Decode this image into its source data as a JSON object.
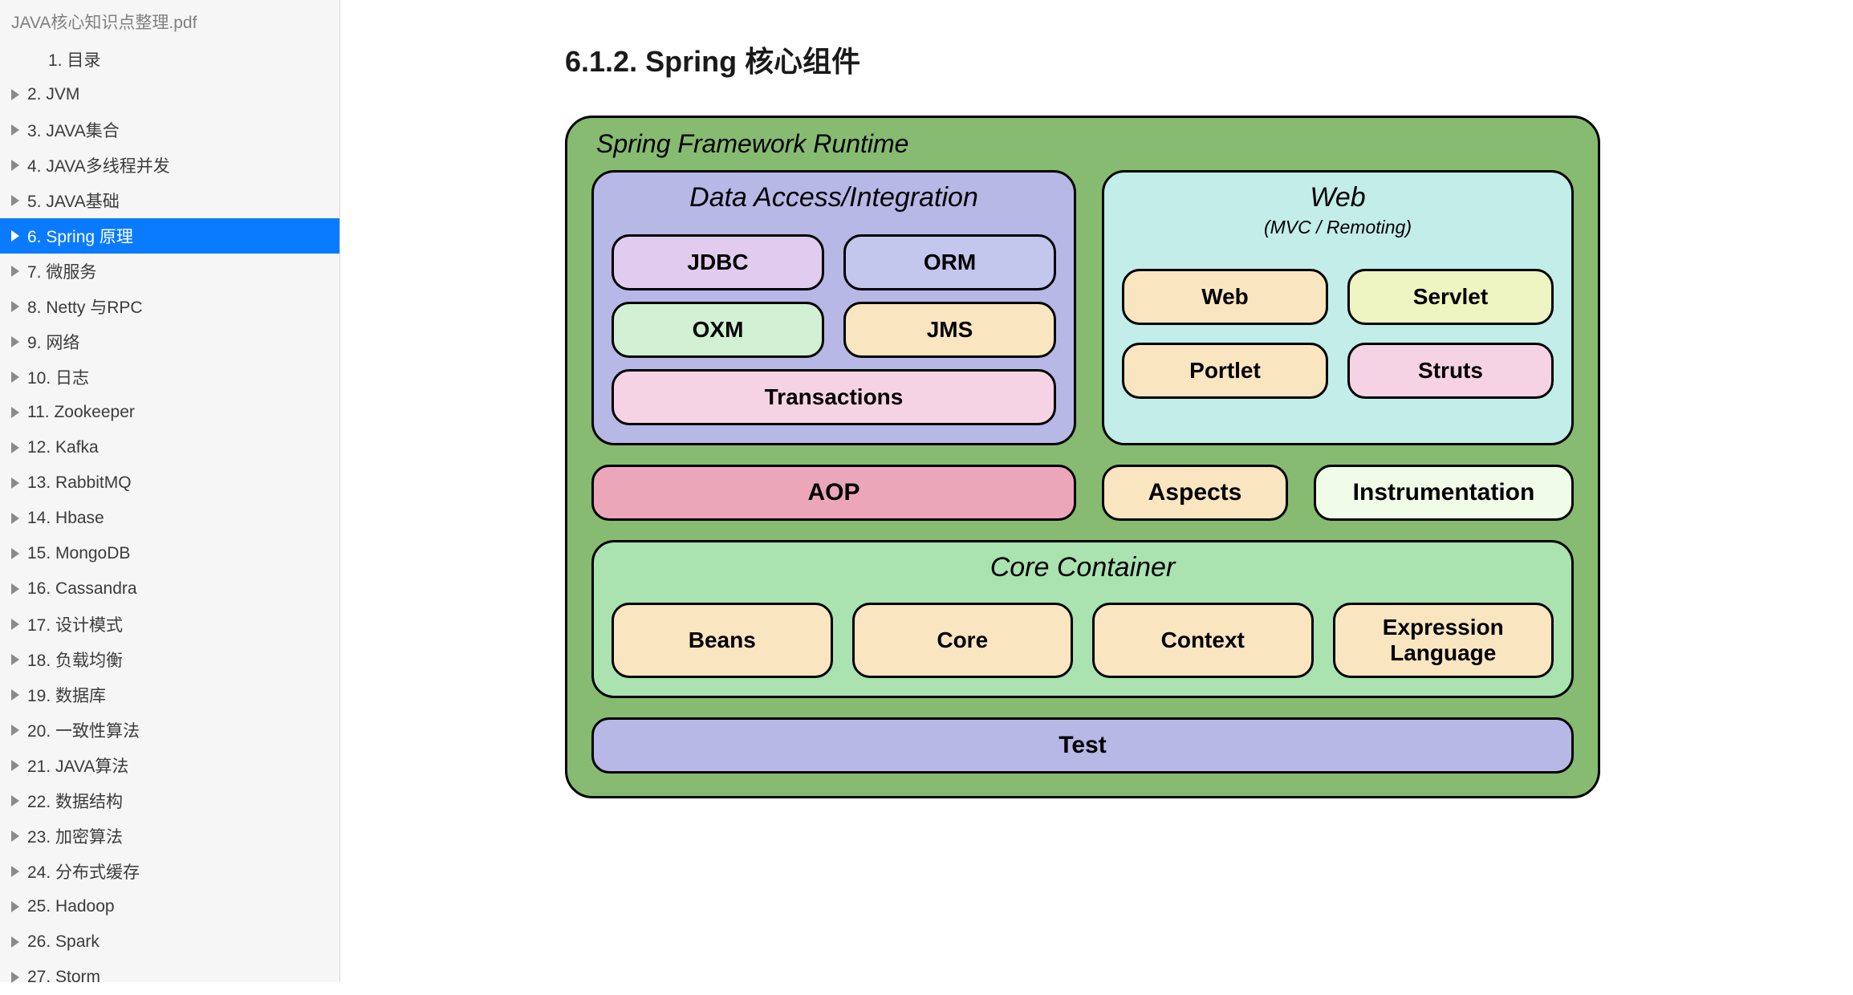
{
  "sidebar": {
    "doc_title": "JAVA核心知识点整理.pdf",
    "items": [
      {
        "label": "1. 目录",
        "arrow": false,
        "indent": true,
        "selected": false
      },
      {
        "label": "2. JVM",
        "arrow": true,
        "indent": false,
        "selected": false
      },
      {
        "label": "3. JAVA集合",
        "arrow": true,
        "indent": false,
        "selected": false
      },
      {
        "label": "4. JAVA多线程并发",
        "arrow": true,
        "indent": false,
        "selected": false
      },
      {
        "label": "5. JAVA基础",
        "arrow": true,
        "indent": false,
        "selected": false
      },
      {
        "label": "6. Spring 原理",
        "arrow": true,
        "indent": false,
        "selected": true
      },
      {
        "label": "7.   微服务",
        "arrow": true,
        "indent": false,
        "selected": false
      },
      {
        "label": "8. Netty 与RPC",
        "arrow": true,
        "indent": false,
        "selected": false
      },
      {
        "label": "9. 网络",
        "arrow": true,
        "indent": false,
        "selected": false
      },
      {
        "label": "10. 日志",
        "arrow": true,
        "indent": false,
        "selected": false
      },
      {
        "label": "11. Zookeeper",
        "arrow": true,
        "indent": false,
        "selected": false
      },
      {
        "label": "12. Kafka",
        "arrow": true,
        "indent": false,
        "selected": false
      },
      {
        "label": "13. RabbitMQ",
        "arrow": true,
        "indent": false,
        "selected": false
      },
      {
        "label": "14. Hbase",
        "arrow": true,
        "indent": false,
        "selected": false
      },
      {
        "label": "15. MongoDB",
        "arrow": true,
        "indent": false,
        "selected": false
      },
      {
        "label": "16. Cassandra",
        "arrow": true,
        "indent": false,
        "selected": false
      },
      {
        "label": "17. 设计模式",
        "arrow": true,
        "indent": false,
        "selected": false
      },
      {
        "label": "18. 负载均衡",
        "arrow": true,
        "indent": false,
        "selected": false
      },
      {
        "label": "19. 数据库",
        "arrow": true,
        "indent": false,
        "selected": false
      },
      {
        "label": "20. 一致性算法",
        "arrow": true,
        "indent": false,
        "selected": false
      },
      {
        "label": "21. JAVA算法",
        "arrow": true,
        "indent": false,
        "selected": false
      },
      {
        "label": "22. 数据结构",
        "arrow": true,
        "indent": false,
        "selected": false
      },
      {
        "label": "23. 加密算法",
        "arrow": true,
        "indent": false,
        "selected": false
      },
      {
        "label": "24. 分布式缓存",
        "arrow": true,
        "indent": false,
        "selected": false
      },
      {
        "label": "25. Hadoop",
        "arrow": true,
        "indent": false,
        "selected": false
      },
      {
        "label": "26. Spark",
        "arrow": true,
        "indent": false,
        "selected": false
      },
      {
        "label": "27. Storm",
        "arrow": true,
        "indent": false,
        "selected": false
      }
    ]
  },
  "content": {
    "section_title": "6.1.2.  Spring 核心组件"
  },
  "diagram": {
    "outer_bg": "#86bb71",
    "title": "Spring Framework Runtime",
    "data_access": {
      "bg": "#b7b8e6",
      "title": "Data Access/Integration",
      "boxes": {
        "jdbc": {
          "label": "JDBC",
          "bg": "#e1cbee"
        },
        "orm": {
          "label": "ORM",
          "bg": "#c3c6ed"
        },
        "oxm": {
          "label": "OXM",
          "bg": "#d1f0d4"
        },
        "jms": {
          "label": "JMS",
          "bg": "#f9e5c0"
        },
        "transactions": {
          "label": "Transactions",
          "bg": "#f6d3e4"
        }
      }
    },
    "web": {
      "bg": "#c2ede9",
      "title": "Web",
      "subtitle": "(MVC / Remoting)",
      "boxes": {
        "web": {
          "label": "Web",
          "bg": "#f9e5c0"
        },
        "servlet": {
          "label": "Servlet",
          "bg": "#eef4c2"
        },
        "portlet": {
          "label": "Portlet",
          "bg": "#f9e5c0"
        },
        "struts": {
          "label": "Struts",
          "bg": "#f6d3e4"
        }
      }
    },
    "middle": {
      "aop": {
        "label": "AOP",
        "bg": "#eba6b9"
      },
      "aspects": {
        "label": "Aspects",
        "bg": "#f9e5c0"
      },
      "instrumentation": {
        "label": "Instrumentation",
        "bg": "#f1fce8"
      }
    },
    "core": {
      "bg": "#aae2b0",
      "title": "Core Container",
      "boxes": {
        "beans": {
          "label": "Beans",
          "bg": "#f9e5c0"
        },
        "core": {
          "label": "Core",
          "bg": "#f9e5c0"
        },
        "context": {
          "label": "Context",
          "bg": "#f9e5c0"
        },
        "el": {
          "label": "Expression\nLanguage",
          "bg": "#f9e5c0"
        }
      }
    },
    "test": {
      "label": "Test",
      "bg": "#b7b8e6"
    }
  }
}
